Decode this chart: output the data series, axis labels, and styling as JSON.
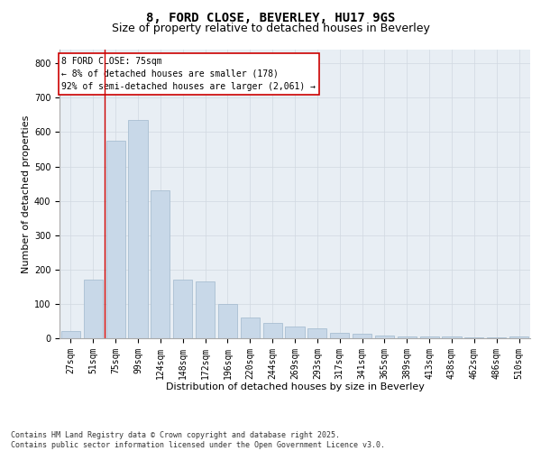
{
  "title1": "8, FORD CLOSE, BEVERLEY, HU17 9GS",
  "title2": "Size of property relative to detached houses in Beverley",
  "xlabel": "Distribution of detached houses by size in Beverley",
  "ylabel": "Number of detached properties",
  "categories": [
    "27sqm",
    "51sqm",
    "75sqm",
    "99sqm",
    "124sqm",
    "148sqm",
    "172sqm",
    "196sqm",
    "220sqm",
    "244sqm",
    "269sqm",
    "293sqm",
    "317sqm",
    "341sqm",
    "365sqm",
    "389sqm",
    "413sqm",
    "438sqm",
    "462sqm",
    "486sqm",
    "510sqm"
  ],
  "values": [
    20,
    170,
    575,
    635,
    430,
    170,
    165,
    100,
    60,
    45,
    35,
    30,
    15,
    12,
    8,
    5,
    5,
    5,
    3,
    2,
    5
  ],
  "bar_color": "#c8d8e8",
  "bar_edge_color": "#a0b8cc",
  "vline_index": 2,
  "vline_color": "#cc0000",
  "annotation_text": "8 FORD CLOSE: 75sqm\n← 8% of detached houses are smaller (178)\n92% of semi-detached houses are larger (2,061) →",
  "annotation_box_color": "#cc0000",
  "annotation_bg": "#ffffff",
  "ylim": [
    0,
    840
  ],
  "yticks": [
    0,
    100,
    200,
    300,
    400,
    500,
    600,
    700,
    800
  ],
  "grid_color": "#d0d8e0",
  "bg_color": "#e8eef4",
  "footnote": "Contains HM Land Registry data © Crown copyright and database right 2025.\nContains public sector information licensed under the Open Government Licence v3.0.",
  "title_fontsize": 10,
  "subtitle_fontsize": 9,
  "axis_label_fontsize": 8,
  "tick_fontsize": 7,
  "annotation_fontsize": 7,
  "footnote_fontsize": 6
}
